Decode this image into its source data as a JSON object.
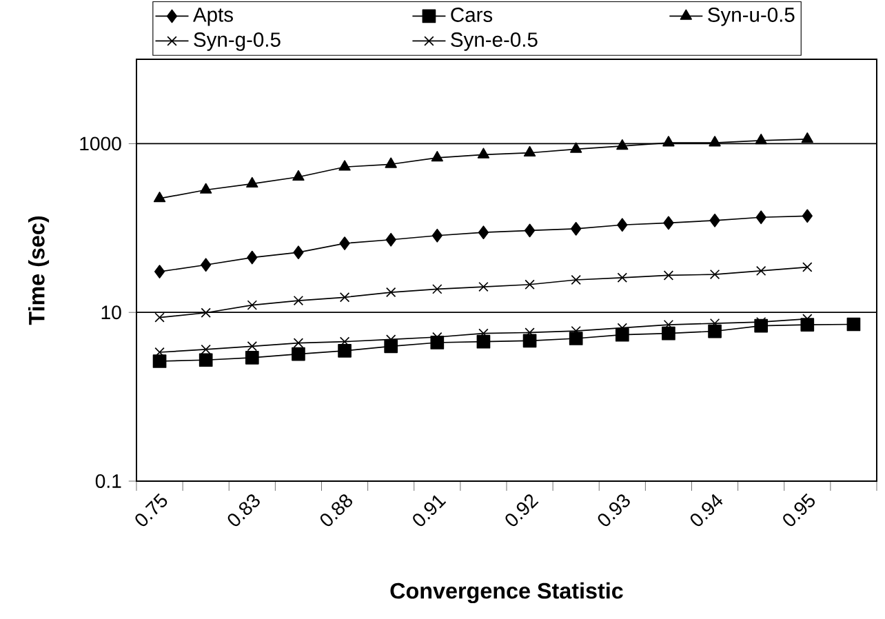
{
  "chart_data": {
    "type": "line",
    "xlabel": "Convergence Statistic",
    "ylabel": "Time (sec)",
    "categories": [
      "0.75",
      null,
      "0.83",
      null,
      "0.88",
      null,
      "0.91",
      null,
      "0.92",
      null,
      "0.93",
      null,
      "0.94",
      null,
      "0.95",
      null
    ],
    "log": "y",
    "ylim": [
      0.1,
      10000
    ],
    "yticks": [
      0.1,
      10,
      1000
    ],
    "grid": "y",
    "legend": "top",
    "line_style": "solid",
    "series": [
      {
        "name": "Apts",
        "color": "#000000",
        "marker": "diamond",
        "values": [
          30.4,
          36.6,
          44.7,
          51.4,
          65.8,
          72.7,
          81.4,
          88.7,
          93.5,
          98,
          109,
          115,
          123,
          134,
          139,
          null
        ]
      },
      {
        "name": "Cars",
        "color": "#000000",
        "marker": "square",
        "values": [
          2.64,
          2.73,
          2.91,
          3.21,
          3.51,
          3.97,
          4.39,
          4.5,
          4.61,
          4.91,
          5.43,
          5.64,
          5.98,
          6.95,
          7.14,
          7.22
        ]
      },
      {
        "name": "Syn-u-0.5",
        "color": "#000000",
        "marker": "triangle",
        "values": [
          224,
          283,
          334,
          403,
          529,
          570,
          681,
          741,
          778,
          861,
          938,
          1026,
          1026,
          1090,
          1131,
          null
        ]
      },
      {
        "name": "Syn-g-0.5",
        "color": "#000000",
        "marker": "cross",
        "values": [
          3.37,
          3.64,
          3.97,
          4.34,
          4.5,
          4.78,
          5.1,
          5.64,
          5.77,
          6.03,
          6.55,
          7.14,
          7.41,
          7.7,
          8.39,
          null
        ]
      },
      {
        "name": "Syn-e-0.5",
        "color": "#000000",
        "marker": "cross",
        "values": [
          8.7,
          9.9,
          12.2,
          13.8,
          15.1,
          17.3,
          18.9,
          20.1,
          21.4,
          24.3,
          25.8,
          27.5,
          28.2,
          31.1,
          34.4,
          null
        ]
      }
    ]
  }
}
